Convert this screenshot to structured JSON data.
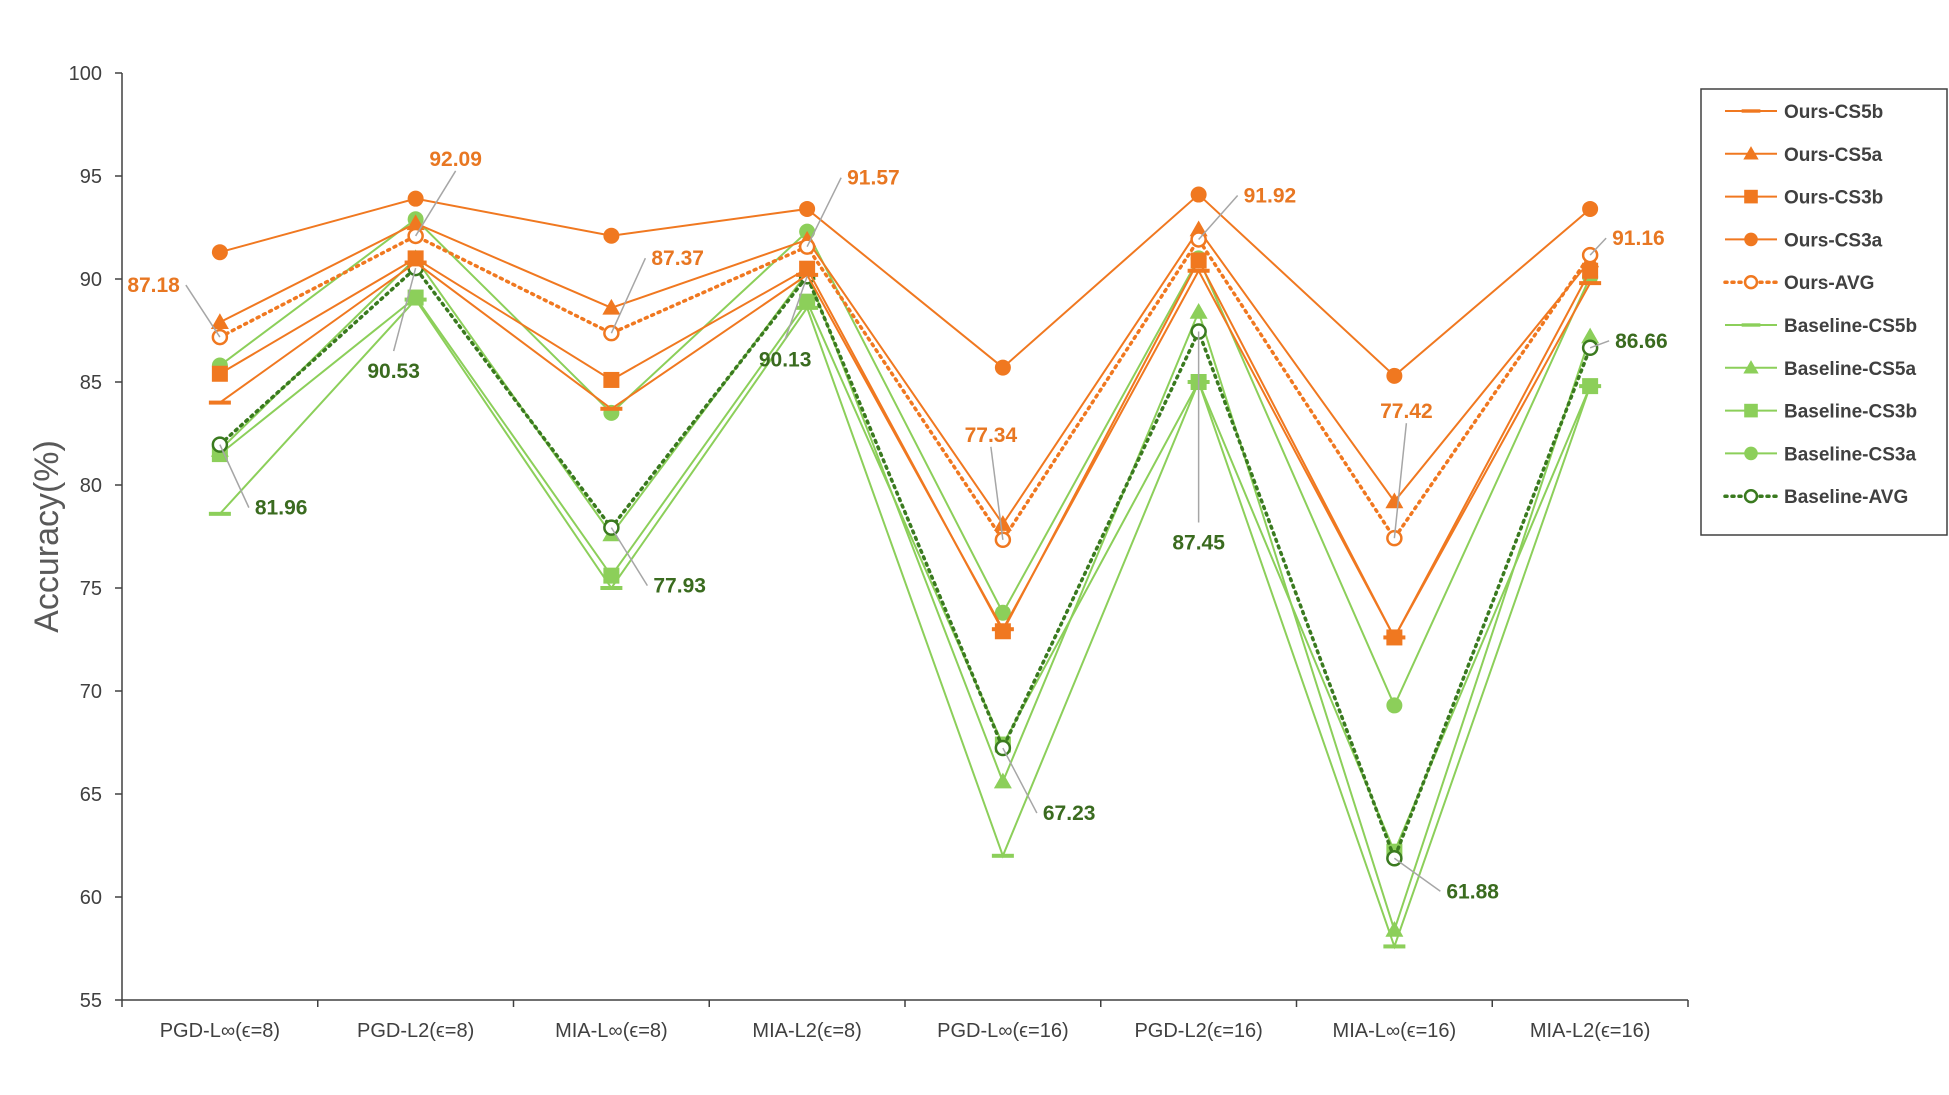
{
  "chart_data": {
    "type": "line",
    "title": "",
    "xlabel": "",
    "ylabel": "Accuracy(%)",
    "ylim": [
      55,
      100
    ],
    "yticks": [
      55,
      60,
      65,
      70,
      75,
      80,
      85,
      90,
      95,
      100
    ],
    "grid": false,
    "legend_position": "right",
    "categories": [
      "PGD-L∞(ϵ=8)",
      "PGD-L2(ϵ=8)",
      "MIA-L∞(ϵ=8)",
      "MIA-L2(ϵ=8)",
      "PGD-L∞(ϵ=16)",
      "PGD-L2(ϵ=16)",
      "MIA-L∞(ϵ=16)",
      "MIA-L2(ϵ=16)"
    ],
    "colors": {
      "ours": "#f07820",
      "baseline": "#8ccf5a",
      "baseline_avg": "#3a7a1f",
      "ours_label": "#e87722",
      "baseline_label": "#3a6b1f"
    },
    "series": [
      {
        "name": "Ours-CS5b",
        "group": "ours",
        "marker": "dash",
        "style": "solid",
        "values": [
          84.0,
          90.8,
          83.7,
          90.2,
          73.0,
          90.4,
          72.6,
          89.8
        ]
      },
      {
        "name": "Ours-CS5a",
        "group": "ours",
        "marker": "triangle",
        "style": "solid",
        "values": [
          87.9,
          92.7,
          88.6,
          91.9,
          78.1,
          92.4,
          79.2,
          90.9
        ]
      },
      {
        "name": "Ours-CS3b",
        "group": "ours",
        "marker": "square",
        "style": "solid",
        "values": [
          85.4,
          91.0,
          85.1,
          90.5,
          72.9,
          90.9,
          72.6,
          90.4
        ]
      },
      {
        "name": "Ours-CS3a",
        "group": "ours",
        "marker": "circle",
        "style": "solid",
        "values": [
          91.3,
          93.9,
          92.1,
          93.4,
          85.7,
          94.1,
          85.3,
          93.4
        ]
      },
      {
        "name": "Ours-AVG",
        "group": "ours",
        "marker": "open-circle",
        "style": "dotted",
        "values": [
          87.18,
          92.09,
          87.37,
          91.57,
          77.34,
          91.92,
          77.42,
          91.16
        ]
      },
      {
        "name": "Baseline-CS5b",
        "group": "baseline",
        "marker": "dash",
        "style": "solid",
        "values": [
          78.6,
          89.0,
          75.0,
          88.6,
          62.0,
          85.0,
          57.6,
          84.8
        ]
      },
      {
        "name": "Baseline-CS5a",
        "group": "baseline",
        "marker": "triangle",
        "style": "solid",
        "values": [
          81.7,
          91.0,
          77.6,
          90.3,
          65.6,
          88.4,
          58.4,
          87.2
        ]
      },
      {
        "name": "Baseline-CS3b",
        "group": "baseline",
        "marker": "square",
        "style": "solid",
        "values": [
          81.5,
          89.1,
          75.6,
          88.9,
          67.4,
          85.0,
          62.2,
          84.8
        ]
      },
      {
        "name": "Baseline-CS3a",
        "group": "baseline",
        "marker": "circle",
        "style": "solid",
        "values": [
          85.8,
          92.9,
          83.5,
          92.3,
          73.8,
          91.0,
          69.3,
          90.1
        ]
      },
      {
        "name": "Baseline-AVG",
        "group": "baseline",
        "marker": "open-circle",
        "style": "dotted",
        "values": [
          81.96,
          90.53,
          77.93,
          90.13,
          67.23,
          87.45,
          61.88,
          86.66
        ]
      }
    ],
    "annotations": [
      {
        "text": "87.18",
        "group": "ours",
        "index": 0
      },
      {
        "text": "92.09",
        "group": "ours",
        "index": 1
      },
      {
        "text": "87.37",
        "group": "ours",
        "index": 2
      },
      {
        "text": "91.57",
        "group": "ours",
        "index": 3
      },
      {
        "text": "77.34",
        "group": "ours",
        "index": 4
      },
      {
        "text": "91.92",
        "group": "ours",
        "index": 5
      },
      {
        "text": "77.42",
        "group": "ours",
        "index": 6
      },
      {
        "text": "91.16",
        "group": "ours",
        "index": 7
      },
      {
        "text": "81.96",
        "group": "baseline",
        "index": 0
      },
      {
        "text": "90.53",
        "group": "baseline",
        "index": 1
      },
      {
        "text": "77.93",
        "group": "baseline",
        "index": 2
      },
      {
        "text": "90.13",
        "group": "baseline",
        "index": 3
      },
      {
        "text": "67.23",
        "group": "baseline",
        "index": 4
      },
      {
        "text": "87.45",
        "group": "baseline",
        "index": 5
      },
      {
        "text": "61.88",
        "group": "baseline",
        "index": 6
      },
      {
        "text": "86.66",
        "group": "baseline",
        "index": 7
      }
    ]
  }
}
